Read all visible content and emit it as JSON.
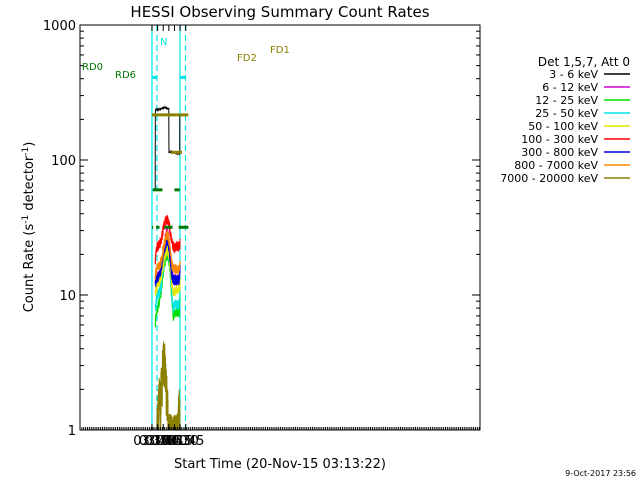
{
  "chart_data": {
    "type": "line",
    "title": "HESSI Observing Summary Count Rates",
    "xlabel": "Start Time (20-Nov-15 03:13:22)",
    "ylabel_main": "Count Rate (s",
    "ylabel_sup1": "-1",
    "ylabel_mid": " detector",
    "ylabel_sup2": "-1",
    "ylabel_end": ")",
    "xlim_min": [
      3,
      1070
    ],
    "ylim": [
      1,
      1000
    ],
    "yscale": "log",
    "xticks": [
      {
        "label": "03:15",
        "v": 195
      },
      {
        "label": "03:30",
        "v": 210
      },
      {
        "label": "03:45",
        "v": 225
      },
      {
        "label": "04:00",
        "v": 240
      },
      {
        "label": "04:15",
        "v": 255
      },
      {
        "label": "04:30",
        "v": 270
      },
      {
        "label": "04:45",
        "v": 285
      }
    ],
    "yticks": [
      {
        "label": "1000",
        "v": 1000
      },
      {
        "label": "100",
        "v": 100
      },
      {
        "label": "10",
        "v": 10
      },
      {
        "label": "1",
        "v": 1
      }
    ],
    "legend_title": "Det 1,5,7, Att 0",
    "legend_position": "right",
    "series": [
      {
        "name": "3 - 6 keV",
        "color": "#000000",
        "points": [
          [
            203.6,
            60
          ],
          [
            203.9,
            235
          ],
          [
            215,
            238
          ],
          [
            230,
            245
          ],
          [
            240,
            240
          ],
          [
            240.3,
            115
          ],
          [
            260,
            113
          ],
          [
            265,
            112
          ],
          [
            268,
            110
          ],
          [
            268.3,
            112
          ],
          [
            269,
            110
          ],
          [
            269.3,
            220
          ]
        ]
      },
      {
        "name": "6 - 12 keV",
        "color": "#d400d4",
        "points": [
          [
            203.6,
            13
          ],
          [
            210,
            14
          ],
          [
            215,
            14
          ],
          [
            220,
            16
          ],
          [
            224,
            19
          ],
          [
            228,
            24
          ],
          [
            232,
            29
          ],
          [
            236,
            30
          ],
          [
            240,
            27
          ],
          [
            244,
            21
          ],
          [
            248,
            15
          ],
          [
            252,
            13
          ],
          [
            256,
            13
          ],
          [
            260,
            13
          ],
          [
            264,
            13
          ],
          [
            268,
            13
          ],
          [
            270,
            15
          ]
        ]
      },
      {
        "name": "12 - 25 keV",
        "color": "#00dd00",
        "points": [
          [
            203.6,
            6
          ],
          [
            206,
            7.5
          ],
          [
            210,
            8
          ],
          [
            215,
            9
          ],
          [
            220,
            11
          ],
          [
            224,
            14
          ],
          [
            228,
            17
          ],
          [
            232,
            19
          ],
          [
            236,
            20
          ],
          [
            240,
            18
          ],
          [
            244,
            14
          ],
          [
            248,
            9
          ],
          [
            252,
            7
          ],
          [
            256,
            7.5
          ],
          [
            260,
            7.5
          ],
          [
            264,
            7.5
          ],
          [
            268,
            7.5
          ],
          [
            270,
            10
          ]
        ]
      },
      {
        "name": "25 - 50 keV",
        "color": "#00e5e5",
        "points": [
          [
            203.6,
            8
          ],
          [
            206,
            9
          ],
          [
            210,
            10
          ],
          [
            215,
            10.5
          ],
          [
            220,
            12
          ],
          [
            224,
            15
          ],
          [
            228,
            18
          ],
          [
            232,
            21
          ],
          [
            236,
            22
          ],
          [
            240,
            20
          ],
          [
            244,
            15
          ],
          [
            248,
            10
          ],
          [
            252,
            8
          ],
          [
            256,
            8.5
          ],
          [
            260,
            8.5
          ],
          [
            264,
            8.5
          ],
          [
            268,
            8.5
          ],
          [
            270,
            11
          ]
        ]
      },
      {
        "name": "50 - 100 keV",
        "color": "#e6e600",
        "points": [
          [
            203.6,
            10
          ],
          [
            206,
            11
          ],
          [
            210,
            12
          ],
          [
            215,
            12.5
          ],
          [
            220,
            14
          ],
          [
            224,
            16
          ],
          [
            228,
            19
          ],
          [
            232,
            21
          ],
          [
            236,
            22
          ],
          [
            240,
            20
          ],
          [
            244,
            16
          ],
          [
            248,
            12
          ],
          [
            252,
            10.5
          ],
          [
            256,
            10.5
          ],
          [
            260,
            11
          ],
          [
            264,
            11
          ],
          [
            268,
            11
          ],
          [
            270,
            12
          ]
        ]
      },
      {
        "name": "100 - 300 keV",
        "color": "#ff0000",
        "points": [
          [
            203.6,
            17
          ],
          [
            206,
            22
          ],
          [
            210,
            23
          ],
          [
            215,
            24
          ],
          [
            220,
            26
          ],
          [
            224,
            30
          ],
          [
            228,
            33
          ],
          [
            232,
            36
          ],
          [
            236,
            37
          ],
          [
            240,
            34
          ],
          [
            244,
            29
          ],
          [
            248,
            25
          ],
          [
            252,
            23
          ],
          [
            256,
            22
          ],
          [
            260,
            23
          ],
          [
            264,
            23
          ],
          [
            268,
            23
          ],
          [
            270,
            24
          ]
        ]
      },
      {
        "name": "300 - 800 keV",
        "color": "#0000dd",
        "points": [
          [
            203.6,
            12
          ],
          [
            206,
            13
          ],
          [
            210,
            13.5
          ],
          [
            215,
            14
          ],
          [
            220,
            16
          ],
          [
            224,
            19
          ],
          [
            228,
            22
          ],
          [
            232,
            24
          ],
          [
            236,
            25
          ],
          [
            240,
            23
          ],
          [
            244,
            18
          ],
          [
            248,
            14
          ],
          [
            252,
            13
          ],
          [
            256,
            13
          ],
          [
            260,
            13
          ],
          [
            264,
            13
          ],
          [
            268,
            13
          ],
          [
            270,
            16
          ]
        ]
      },
      {
        "name": "800 - 7000 keV",
        "color": "#ff8800",
        "points": [
          [
            203.6,
            14
          ],
          [
            206,
            15
          ],
          [
            210,
            16
          ],
          [
            215,
            16.5
          ],
          [
            220,
            18
          ],
          [
            224,
            21
          ],
          [
            228,
            24
          ],
          [
            232,
            27
          ],
          [
            236,
            28
          ],
          [
            240,
            26
          ],
          [
            244,
            21
          ],
          [
            248,
            17
          ],
          [
            252,
            15.5
          ],
          [
            256,
            15.5
          ],
          [
            260,
            15.5
          ],
          [
            264,
            15.5
          ],
          [
            268,
            15.5
          ],
          [
            270,
            18
          ]
        ]
      },
      {
        "name": "7000 - 20000 keV",
        "color": "#8b8000",
        "points": [
          [
            208,
            1
          ],
          [
            212,
            1.4
          ],
          [
            215,
            1.8
          ],
          [
            217,
            1.5
          ],
          [
            220,
            2.2
          ],
          [
            223,
            2.8
          ],
          [
            226,
            3.2
          ],
          [
            228,
            3.5
          ],
          [
            231,
            2.6
          ],
          [
            234,
            1.9
          ],
          [
            237,
            1.4
          ],
          [
            240,
            1
          ],
          [
            252,
            1
          ],
          [
            264,
            1
          ],
          [
            268,
            1.6
          ],
          [
            269.5,
            1.2
          ]
        ]
      }
    ],
    "annotations": {
      "vlines_solid": [
        {
          "v": 195,
          "color": "#00e5e5"
        },
        {
          "v": 269.7,
          "color": "#00e5e5"
        }
      ],
      "vlines_dashed": [
        {
          "v": 208.3,
          "color": "#00e5e5"
        },
        {
          "v": 284.4,
          "color": "#00e5e5"
        }
      ],
      "bars": [
        {
          "label": "N",
          "color": "#00e5e5",
          "y_frac": 0.035,
          "segments": [
            [
              195,
              208.3
            ],
            [
              271,
              285
            ]
          ]
        },
        {
          "label": "FD1",
          "color": "#8b8000",
          "y_frac": 0.06,
          "segments": [
            [
              195,
              270
            ],
            [
              271,
              292
            ]
          ]
        },
        {
          "label": "FD2",
          "color": "#8b8000",
          "y_frac": 0.085,
          "segments": [
            [
              245,
              275
            ]
          ]
        },
        {
          "label": "RD0",
          "color": "#007700",
          "y_frac": 0.11,
          "segments": [
            [
              197,
              223
            ],
            [
              255,
              269
            ]
          ]
        },
        {
          "label": "RD6",
          "color": "#007700",
          "y_frac": 0.135,
          "segments": [
            [
              195,
              198
            ],
            [
              206,
              215
            ],
            [
              228,
              250
            ],
            [
              266,
              292
            ]
          ]
        }
      ]
    }
  },
  "footer_timestamp": "9-Oct-2017 23:56"
}
